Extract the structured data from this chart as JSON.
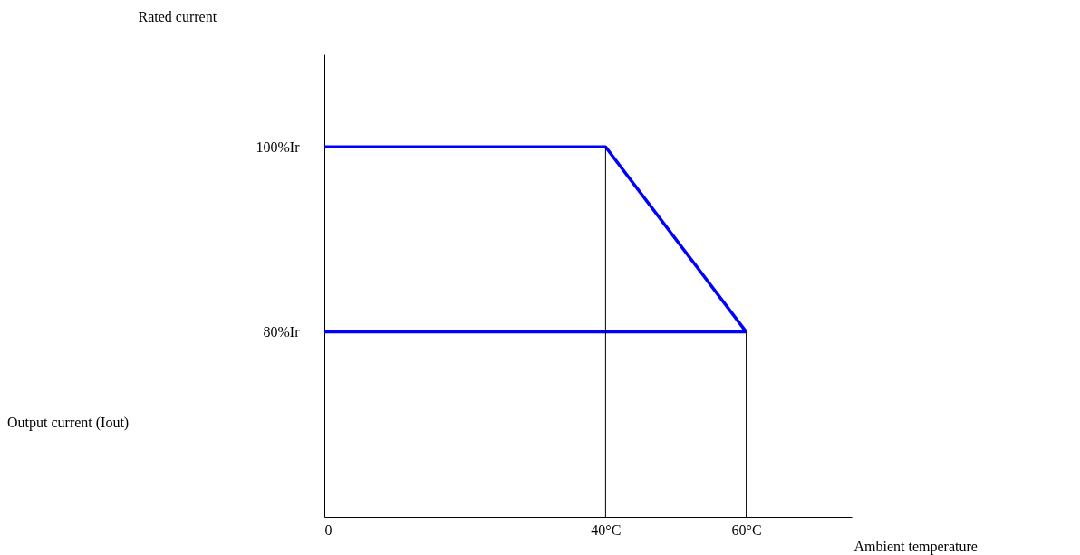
{
  "chart_data": {
    "type": "line",
    "xlabel": "Ambient temperature",
    "ylabel": "Rated current",
    "annotations": [
      "Output current (Iout)"
    ],
    "xlim": [
      0,
      75
    ],
    "xticks": [
      0,
      {
        "value": 40,
        "label": "40°C"
      },
      {
        "value": 60,
        "label": "60°C"
      }
    ],
    "ylim": [
      60,
      110
    ],
    "yticks": [
      {
        "value": 80,
        "label": "80%Ir"
      },
      {
        "value": 100,
        "label": "100%Ir"
      }
    ],
    "series": [
      {
        "color": "#0000ff",
        "x": [
          0,
          40,
          60
        ],
        "values": [
          100,
          100,
          80
        ]
      },
      {
        "color": "#0000ff",
        "x": [
          0,
          60
        ],
        "values": [
          80,
          80
        ]
      },
      {
        "color": "#000000",
        "x": [
          40,
          40
        ],
        "values": [
          60,
          100
        ]
      },
      {
        "color": "#000000",
        "x": [
          60,
          60
        ],
        "values": [
          60,
          80
        ]
      }
    ],
    "grid": false
  }
}
